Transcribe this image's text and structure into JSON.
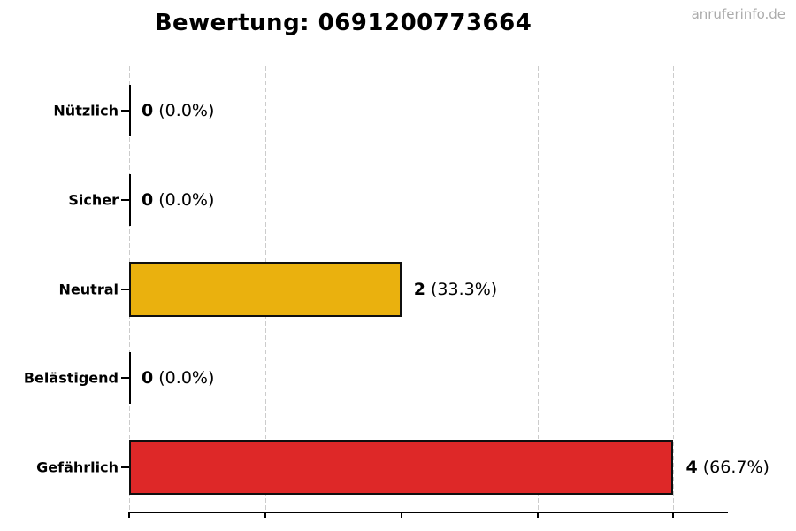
{
  "page": {
    "watermark": "anruferinfo.de",
    "background_color": "#ffffff",
    "watermark_color": "#ababab"
  },
  "chart_data": {
    "type": "bar",
    "orientation": "horizontal",
    "title": "Bewertung: 0691200773664",
    "categories": [
      "Nützlich",
      "Sicher",
      "Neutral",
      "Belästigend",
      "Gefährlich"
    ],
    "values": [
      0,
      0,
      2,
      0,
      4
    ],
    "value_labels": [
      {
        "count": "0",
        "percent": "0.0%"
      },
      {
        "count": "0",
        "percent": "0.0%"
      },
      {
        "count": "2",
        "percent": "33.3%"
      },
      {
        "count": "0",
        "percent": "0.0%"
      },
      {
        "count": "4",
        "percent": "66.7%"
      }
    ],
    "bar_colors": [
      "#000000",
      "#000000",
      "#EAB10E",
      "#000000",
      "#DE2828"
    ],
    "bar_edge_color": "#0f0f0f",
    "xlabel": "",
    "ylabel": "",
    "xlim": [
      0,
      4.4
    ],
    "x_ticks": [
      0,
      1,
      2,
      3,
      4
    ],
    "x_tick_labels": [],
    "grid": {
      "axis": "x",
      "style": "dashed",
      "color": "#cccccc"
    },
    "legend": "none"
  }
}
